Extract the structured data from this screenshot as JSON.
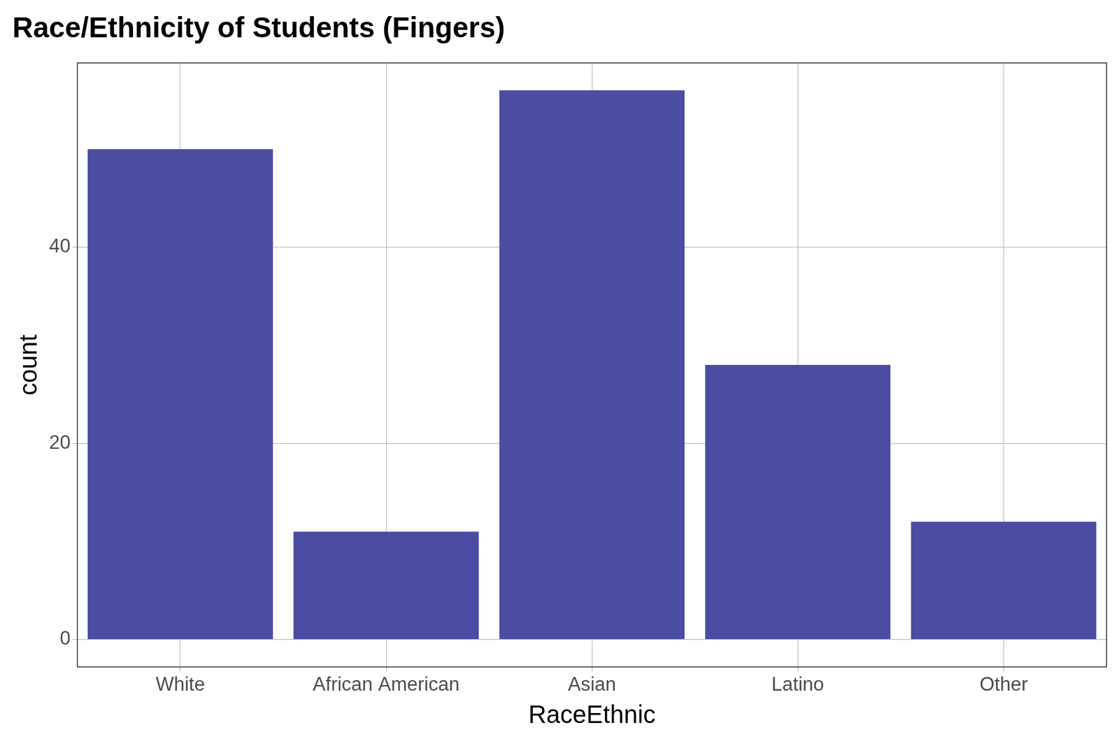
{
  "chart_data": {
    "type": "bar",
    "title": "Race/Ethnicity of Students (Fingers)",
    "x_label": "RaceEthnic",
    "y_label": "count",
    "categories": [
      "White",
      "African American",
      "Asian",
      "Latino",
      "Other"
    ],
    "values": [
      50,
      11,
      56,
      28,
      12
    ],
    "color": "#4b4ca2",
    "ylim": [
      -2.8,
      58.8
    ],
    "yticks": [
      0,
      20,
      40
    ],
    "grid": true
  }
}
